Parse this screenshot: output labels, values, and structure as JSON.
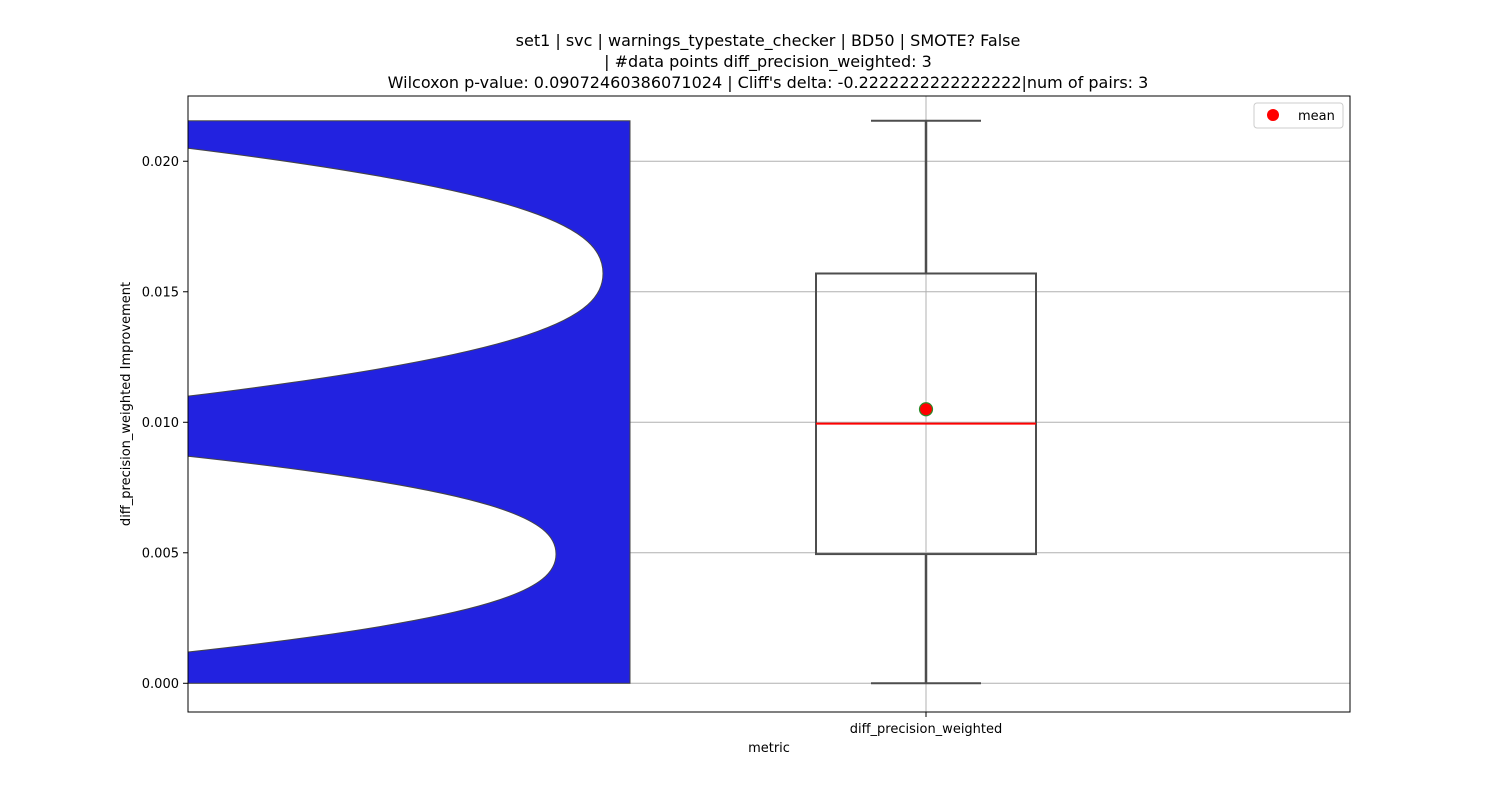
{
  "chart_data": {
    "type": "box",
    "title_lines": [
      "set1 | svc | warnings_typestate_checker | BD50 | SMOTE? False",
      "| #data points diff_precision_weighted: 3",
      "Wilcoxon p-value: 0.09072460386071024 | Cliff's delta: -0.2222222222222222|num of pairs: 3"
    ],
    "xlabel": "metric",
    "ylabel": "diff_precision_weighted Improvement",
    "categories": [
      "diff_precision_weighted"
    ],
    "ylim": [
      -0.0011,
      0.0225
    ],
    "yticks": [
      0.0,
      0.005,
      0.01,
      0.015,
      0.02
    ],
    "ytick_labels": [
      "0.000",
      "0.005",
      "0.010",
      "0.015",
      "0.020"
    ],
    "grid": true,
    "box": {
      "whisker_low": 0.0,
      "q1": 0.00495,
      "median": 0.00995,
      "q3": 0.0157,
      "whisker_high": 0.02155,
      "mean": 0.0105
    },
    "density_modes": [
      0.0157,
      0.00495
    ],
    "legend": {
      "entries": [
        "mean"
      ],
      "placement": "top-right"
    },
    "colors": {
      "violin_fill": "#2222e0",
      "box_edge": "#4d4d4d",
      "median": "#ff0000",
      "mean_marker": "#ff0000",
      "mean_edge": "#2a8a2a",
      "grid": "#b0b0b0"
    }
  }
}
